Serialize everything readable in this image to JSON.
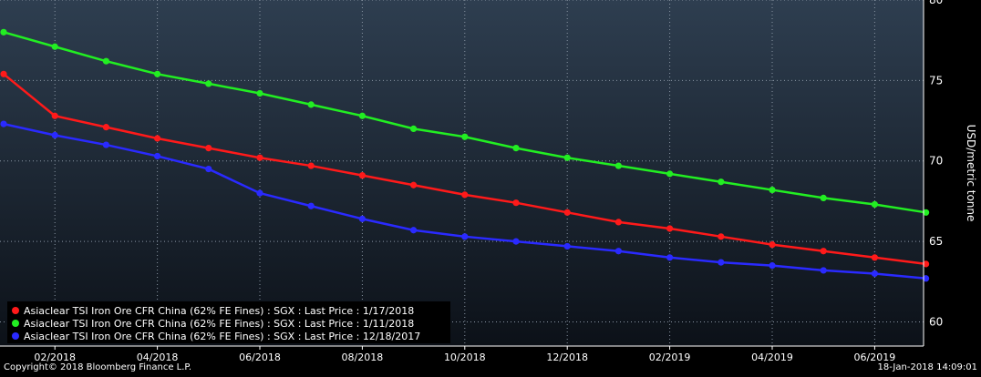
{
  "chart_data": {
    "type": "line",
    "ylabel": "USD/metric tonne",
    "ylim": [
      58.5,
      80
    ],
    "yticks": [
      60,
      65,
      70,
      75,
      80
    ],
    "x_tick_labels": [
      "02/2018",
      "04/2018",
      "06/2018",
      "08/2018",
      "10/2018",
      "12/2018",
      "02/2019",
      "04/2019",
      "06/2019"
    ],
    "x": [
      "01/2018",
      "02/2018",
      "03/2018",
      "04/2018",
      "05/2018",
      "06/2018",
      "07/2018",
      "08/2018",
      "09/2018",
      "10/2018",
      "11/2018",
      "12/2018",
      "01/2019",
      "02/2019",
      "03/2019",
      "04/2019",
      "05/2019",
      "06/2019",
      "07/2019"
    ],
    "grid": true,
    "legend_position": "bottom-left",
    "series": [
      {
        "name": "Asiaclear TSI Iron Ore CFR China (62% FE Fines) : SGX : Last Price : 1/17/2018",
        "color": "#ff1a1a",
        "values": [
          75.4,
          72.8,
          72.1,
          71.4,
          70.8,
          70.2,
          69.7,
          69.1,
          68.5,
          67.9,
          67.4,
          66.8,
          66.2,
          65.8,
          65.3,
          64.8,
          64.4,
          64.0,
          63.6
        ]
      },
      {
        "name": "Asiaclear TSI Iron Ore CFR China (62% FE Fines) : SGX : Last Price : 1/11/2018",
        "color": "#22ee22",
        "values": [
          78.0,
          77.1,
          76.2,
          75.4,
          74.8,
          74.2,
          73.5,
          72.8,
          72.0,
          71.5,
          70.8,
          70.2,
          69.7,
          69.2,
          68.7,
          68.2,
          67.7,
          67.3,
          66.8
        ]
      },
      {
        "name": "Asiaclear TSI Iron Ore CFR China (62% FE Fines) : SGX : Last Price : 12/18/2017",
        "color": "#2a2aff",
        "values": [
          72.3,
          71.6,
          71.0,
          70.3,
          69.5,
          68.0,
          67.2,
          66.4,
          65.7,
          65.3,
          65.0,
          64.7,
          64.4,
          64.0,
          63.7,
          63.5,
          63.2,
          63.0,
          62.7
        ]
      }
    ]
  },
  "footer": {
    "copyright": "Copyright© 2018 Bloomberg Finance L.P.",
    "timestamp": "18-Jan-2018 14:09:01"
  }
}
